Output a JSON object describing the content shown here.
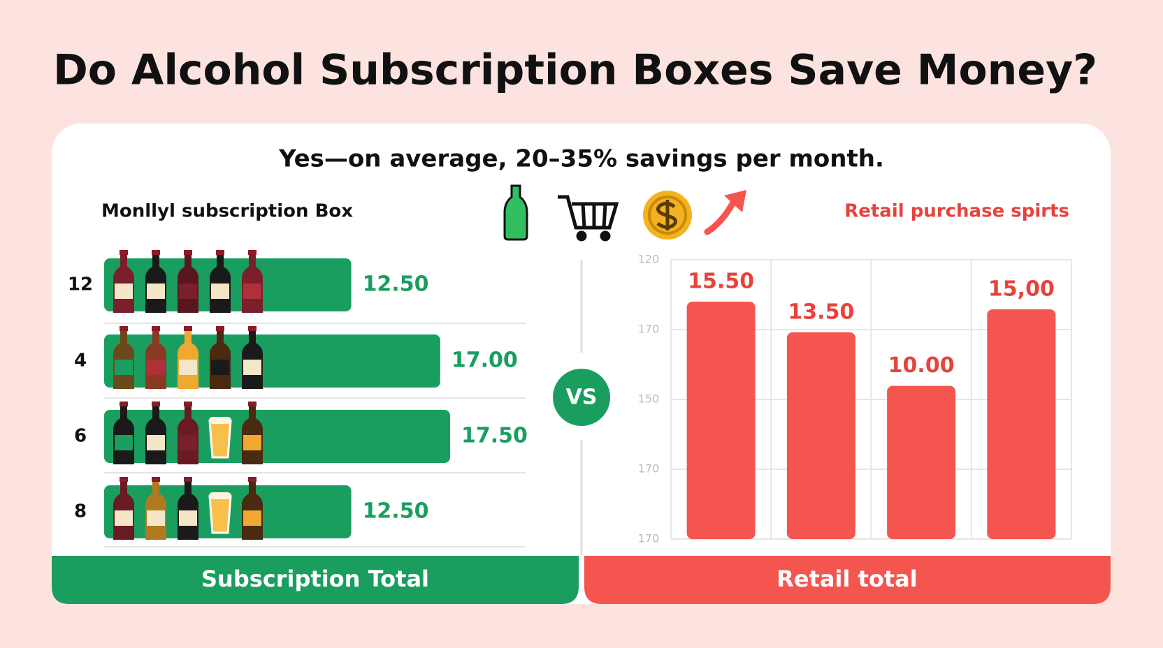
{
  "title": "Do Alcohol Subscription Boxes Save Money?",
  "subtitle": "Yes—on average, 20–35% savings per month.",
  "vs_label": "VS",
  "chart_data": [
    {
      "type": "hbar",
      "title": "Monllyl subscription Box",
      "categories": [
        "12",
        "4",
        "6",
        "8"
      ],
      "values": [
        12.5,
        17,
        17.5,
        12.5
      ],
      "value_labels": [
        "12.50",
        "17.00",
        "17.50",
        "12.50"
      ],
      "color": "#1a9e5f",
      "footer": "Subscription Total"
    },
    {
      "type": "bar",
      "title": "Retail purchase spirts",
      "values": [
        15.5,
        13.5,
        10,
        15
      ],
      "value_labels": [
        "15.50",
        "13.50",
        "10.00",
        "15,00"
      ],
      "color": "#f4554f",
      "y_axis_labels": [
        "120",
        "170",
        "150",
        "170",
        "170"
      ],
      "grid": true,
      "footer": "Retail total"
    }
  ]
}
